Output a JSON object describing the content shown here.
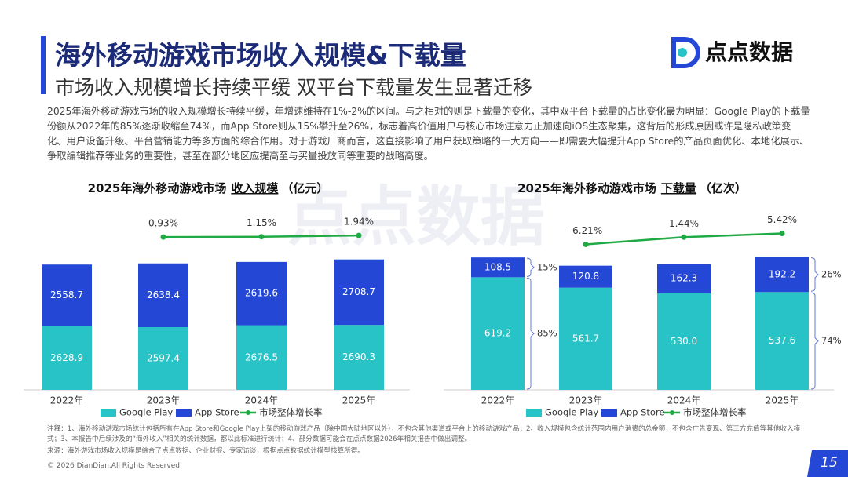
{
  "header": {
    "title": "海外移动游戏市场收入规模&下载量",
    "subtitle": "市场收入规模增长持续平缓 双平台下载量发生显著迁移",
    "logo": "点点数据"
  },
  "paragraph": "2025年海外移动游戏市场的收入规模增长持续平缓，年增速维持在1%-2%的区间。与之相对的则是下载量的变化，其中双平台下载量的占比变化最为明显：Google Play的下载量份额从2022年的85%逐渐收缩至74%，而App Store则从15%攀升至26%，标志着高价值用户与核心市场注意力正加速向iOS生态聚集，这背后的形成原因或许是隐私政策变化、用户设备升级、平台营销能力等多方面的综合作用。对于游戏厂商而言，这直接影响了用户获取策略的一大方向——即需要大幅提升App Store的产品页面优化、本地化展示、争取编辑推荐等业务的重要性，甚至在部分地区应提高至与买量投放同等重要的战略高度。",
  "watermark": "点点数据",
  "notes": "注释：1、海外移动游戏市场统计包括所有在App Store和Google Play上架的移动游戏产品（除中国大陆地区以外），不包含其他渠道或平台上的移动游戏产品；2、收入规模包含统计范围内用户消费的总金额，不包含广告变现、第三方充值等其他收入模式；3、本报告中后续涉及的“海外收入”相关的统计数据，都以此标准进行统计；4、部分数据可能会在点点数据2026年相关报告中做出调整。",
  "source": "来源：海外游戏市场收入规模是综合了点点数据、企业财报、专家访谈，根据点点数据统计模型核算所得。",
  "copyright": "© 2026 DianDian.All Rights Reserved.",
  "page_number": "15",
  "chart_data": [
    {
      "type": "bar",
      "stacked": true,
      "title": "2025年海外移动游戏市场",
      "title_emphasis": "收入规模",
      "title_unit": "（亿元）",
      "categories": [
        "2022年",
        "2023年",
        "2024年",
        "2025年"
      ],
      "series": [
        {
          "name": "Google Play",
          "color": "#27c3c6",
          "values": [
            2628.9,
            2597.4,
            2676.5,
            2690.3
          ]
        },
        {
          "name": "App Store",
          "color": "#2447d6",
          "values": [
            2558.7,
            2638.4,
            2619.6,
            2708.7
          ]
        },
        {
          "name": "市场整体增长率",
          "type": "line",
          "color": "#1faa45",
          "values": [
            null,
            0.93,
            1.15,
            1.94
          ],
          "value_labels": [
            null,
            "0.93%",
            "1.15%",
            "1.94%"
          ]
        }
      ]
    },
    {
      "type": "bar",
      "stacked": true,
      "title": "2025年海外移动游戏市场",
      "title_emphasis": "下载量",
      "title_unit": "（亿次）",
      "categories": [
        "2022年",
        "2023年",
        "2024年",
        "2025年"
      ],
      "series": [
        {
          "name": "Google Play",
          "color": "#27c3c6",
          "values": [
            619.2,
            561.7,
            530.0,
            537.6
          ],
          "value_labels": [
            "619.2",
            "561.7",
            "530.0",
            "537.6"
          ],
          "shares": [
            85,
            null,
            null,
            74
          ],
          "share_labels": [
            "85%",
            null,
            null,
            "74%"
          ]
        },
        {
          "name": "App Store",
          "color": "#2447d6",
          "values": [
            108.5,
            120.8,
            162.3,
            192.2
          ],
          "shares": [
            15,
            null,
            null,
            26
          ],
          "share_labels": [
            "15%",
            null,
            null,
            "26%"
          ]
        },
        {
          "name": "市场整体增长率",
          "type": "line",
          "color": "#1faa45",
          "values": [
            null,
            -6.21,
            1.44,
            5.42
          ],
          "value_labels": [
            null,
            "-6.21%",
            "1.44%",
            "5.42%"
          ]
        }
      ]
    }
  ]
}
